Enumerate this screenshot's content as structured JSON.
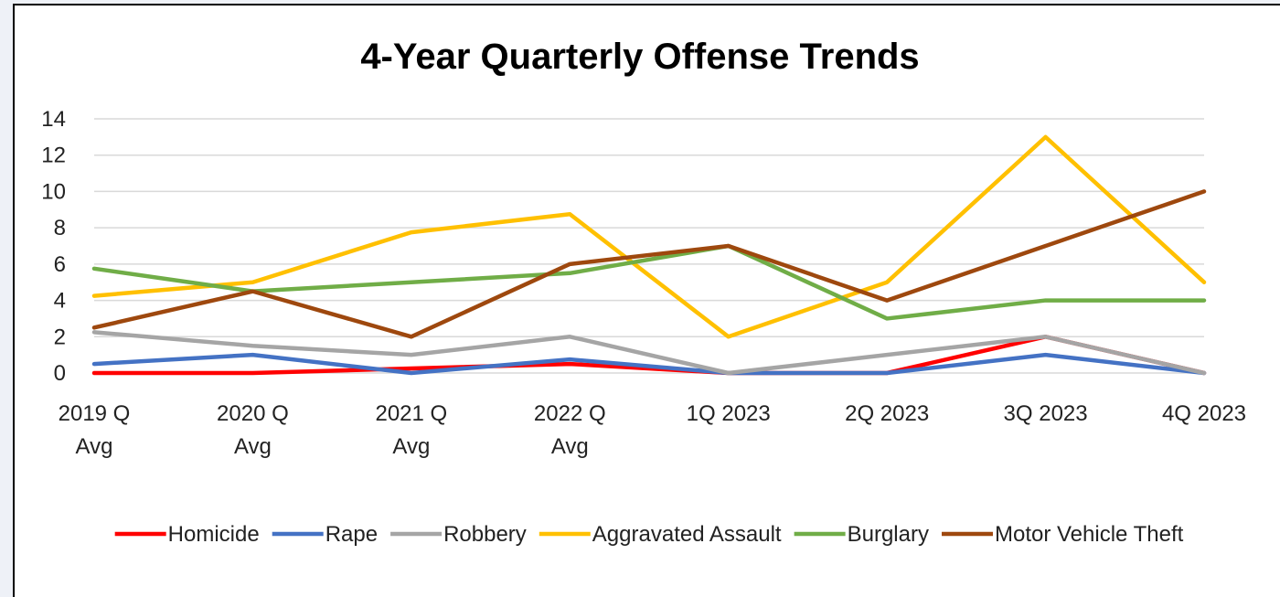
{
  "chart_data": {
    "type": "line",
    "title": "4-Year Quarterly Offense Trends",
    "xlabel": "",
    "ylabel": "",
    "categories": [
      [
        "2019 Q",
        "Avg"
      ],
      [
        "2020 Q",
        "Avg"
      ],
      [
        "2021 Q",
        "Avg"
      ],
      [
        "2022 Q",
        "Avg"
      ],
      [
        "1Q 2023"
      ],
      [
        "2Q 2023"
      ],
      [
        "3Q 2023"
      ],
      [
        "4Q 2023"
      ]
    ],
    "ylim": [
      0,
      14
    ],
    "yticks": [
      0,
      2,
      4,
      6,
      8,
      10,
      12,
      14
    ],
    "grid": true,
    "legend_position": "bottom",
    "series": [
      {
        "name": "Homicide",
        "color": "#ff0000",
        "values": [
          0,
          0,
          0.25,
          0.5,
          0,
          0,
          2,
          0
        ]
      },
      {
        "name": "Rape",
        "color": "#4472c4",
        "values": [
          0.5,
          1,
          0,
          0.75,
          0,
          0,
          1,
          0
        ]
      },
      {
        "name": "Robbery",
        "color": "#a5a5a5",
        "values": [
          2.25,
          1.5,
          1,
          2,
          0,
          1,
          2,
          0
        ]
      },
      {
        "name": "Aggravated Assault",
        "color": "#ffc000",
        "values": [
          4.25,
          5,
          7.75,
          8.75,
          2,
          5,
          13,
          5
        ]
      },
      {
        "name": "Burglary",
        "color": "#70ad47",
        "values": [
          5.75,
          4.5,
          5,
          5.5,
          7,
          3,
          4,
          4
        ]
      },
      {
        "name": "Motor Vehicle Theft",
        "color": "#9e480e",
        "values": [
          2.5,
          4.5,
          2,
          6,
          7,
          4,
          7,
          10
        ]
      }
    ]
  }
}
